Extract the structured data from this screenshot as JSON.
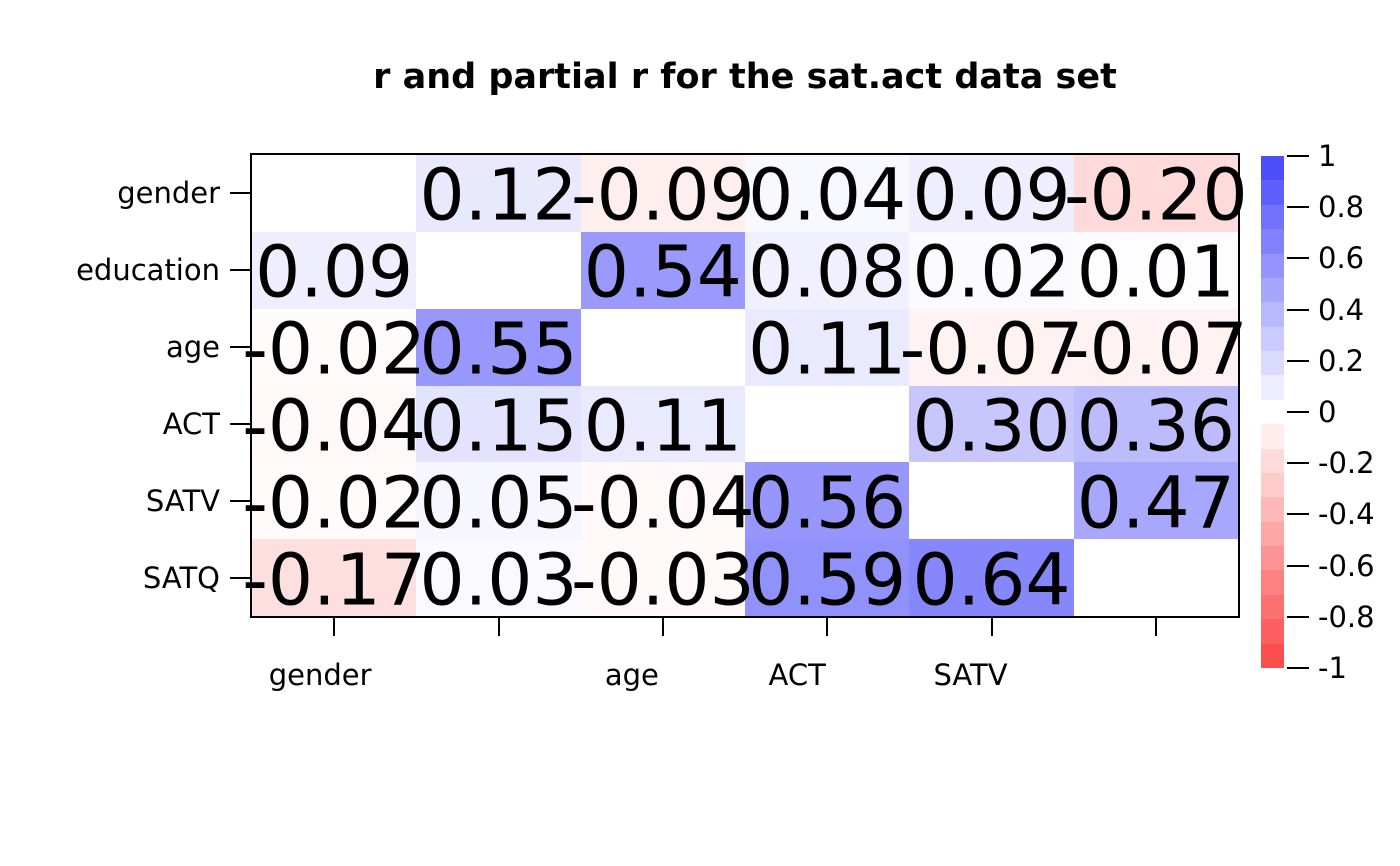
{
  "title": "r and partial r for the sat.act data set",
  "chart_data": {
    "type": "heatmap",
    "title": "r and partial r for the sat.act data set",
    "variables": [
      "gender",
      "education",
      "age",
      "ACT",
      "SATV",
      "SATQ"
    ],
    "y_tick_labels": [
      "gender",
      "education",
      "age",
      "ACT",
      "SATV",
      "SATQ"
    ],
    "x_tick_labels": [
      "gender",
      "",
      "age",
      "ACT",
      "SATV",
      ""
    ],
    "matrix": [
      [
        null,
        0.12,
        -0.09,
        0.04,
        0.09,
        -0.2
      ],
      [
        0.09,
        null,
        0.54,
        0.08,
        0.02,
        0.01
      ],
      [
        -0.02,
        0.55,
        null,
        0.11,
        -0.07,
        -0.07
      ],
      [
        -0.04,
        0.15,
        0.11,
        null,
        0.3,
        0.36
      ],
      [
        -0.02,
        0.05,
        -0.04,
        0.56,
        null,
        0.47
      ],
      [
        -0.17,
        0.03,
        -0.03,
        0.59,
        0.64,
        null
      ]
    ],
    "decimals": 2,
    "colorbar": {
      "min": -1,
      "max": 1,
      "tick_labels": [
        "1",
        "0.8",
        "0.6",
        "0.4",
        "0.2",
        "0",
        "-0.2",
        "-0.4",
        "-0.6",
        "-0.8",
        "-1"
      ],
      "tick_values": [
        1,
        0.8,
        0.6,
        0.4,
        0.2,
        0,
        -0.2,
        -0.4,
        -0.6,
        -0.8,
        -1
      ],
      "segments": 21
    },
    "colors": {
      "positive_max": "#4444FA",
      "negative_max": "#FA4444",
      "zero": "#FFFFFF",
      "text": "#000000",
      "background": "#FFFFFF"
    },
    "layout_hints": {
      "grid": "off",
      "legend_position": "right",
      "diagonal": "blank"
    }
  }
}
